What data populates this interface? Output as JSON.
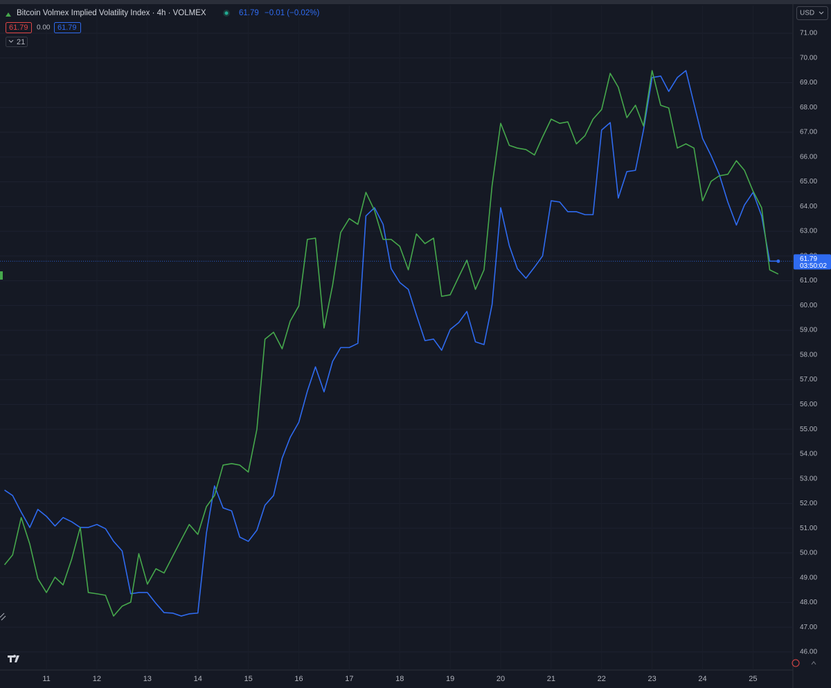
{
  "chart_data": {
    "type": "line",
    "title": "Bitcoin Volmex Implied Volatility Index · 4h · VOLMEX",
    "header": {
      "last": "61.79",
      "change": "−0.01 (−0.02%)",
      "ind_a": "61.79",
      "ind_b": "0.00",
      "ind_c": "61.79",
      "collapse": "21",
      "currency": "USD"
    },
    "countdown": "03:50:02",
    "grid": true,
    "xlim": [
      10.08,
      25.79
    ],
    "ylim": [
      45.27,
      72.12
    ],
    "xticks": [
      11,
      12,
      13,
      14,
      15,
      16,
      17,
      18,
      19,
      20,
      21,
      22,
      23,
      24,
      25
    ],
    "yticks": [
      {
        "value": 46,
        "label": "46.00"
      },
      {
        "value": 47,
        "label": "47.00"
      },
      {
        "value": 48,
        "label": "48.00"
      },
      {
        "value": 49,
        "label": "49.00"
      },
      {
        "value": 50,
        "label": "50.00"
      },
      {
        "value": 51,
        "label": "51.00"
      },
      {
        "value": 52,
        "label": "52.00"
      },
      {
        "value": 53,
        "label": "53.00"
      },
      {
        "value": 54,
        "label": "54.00"
      },
      {
        "value": 55,
        "label": "55.00"
      },
      {
        "value": 56,
        "label": "56.00"
      },
      {
        "value": 57,
        "label": "57.00"
      },
      {
        "value": 58,
        "label": "58.00"
      },
      {
        "value": 59,
        "label": "59.00"
      },
      {
        "value": 60,
        "label": "60.00"
      },
      {
        "value": 61,
        "label": "61.00"
      },
      {
        "value": 62,
        "label": "62.00"
      },
      {
        "value": 63,
        "label": "63.00"
      },
      {
        "value": 64,
        "label": "64.00"
      },
      {
        "value": 65,
        "label": "65.00"
      },
      {
        "value": 66,
        "label": "66.00"
      },
      {
        "value": 67,
        "label": "67.00"
      },
      {
        "value": 68,
        "label": "68.00"
      },
      {
        "value": 69,
        "label": "69.00"
      },
      {
        "value": 70,
        "label": "70.00"
      },
      {
        "value": 71,
        "label": "71.00"
      }
    ],
    "x": [
      10.17,
      10.33,
      10.5,
      10.67,
      10.83,
      11,
      11.17,
      11.33,
      11.5,
      11.67,
      11.83,
      12,
      12.17,
      12.33,
      12.5,
      12.67,
      12.83,
      13,
      13.17,
      13.33,
      13.5,
      13.67,
      13.83,
      14,
      14.17,
      14.33,
      14.5,
      14.67,
      14.83,
      15,
      15.17,
      15.33,
      15.5,
      15.67,
      15.83,
      16,
      16.17,
      16.33,
      16.5,
      16.67,
      16.83,
      17,
      17.17,
      17.33,
      17.5,
      17.67,
      17.83,
      18,
      18.17,
      18.33,
      18.5,
      18.67,
      18.83,
      19,
      19.17,
      19.33,
      19.5,
      19.67,
      19.83,
      20,
      20.17,
      20.33,
      20.5,
      20.67,
      20.83,
      21,
      21.17,
      21.33,
      21.5,
      21.67,
      21.83,
      22,
      22.17,
      22.33,
      22.5,
      22.67,
      22.83,
      23,
      23.17,
      23.33,
      23.5,
      23.67,
      23.83,
      24,
      24.17,
      24.33,
      24.5,
      24.67,
      24.83,
      25,
      25.17,
      25.33,
      25.5
    ],
    "series": [
      {
        "color": "#2f6bf0",
        "values": [
          52.54,
          52.32,
          51.65,
          51.03,
          51.76,
          51.48,
          51.09,
          51.43,
          51.26,
          51.03,
          51.03,
          51.15,
          50.98,
          50.47,
          50.08,
          48.35,
          48.4,
          48.4,
          47.96,
          47.59,
          47.57,
          47.45,
          47.54,
          47.57,
          50.81,
          52.71,
          51.82,
          51.7,
          50.64,
          50.47,
          50.92,
          51.93,
          52.32,
          53.83,
          54.67,
          55.28,
          56.54,
          57.52,
          56.51,
          57.74,
          58.3,
          58.3,
          58.47,
          63.62,
          63.95,
          63.28,
          61.49,
          60.93,
          60.65,
          59.62,
          58.58,
          58.64,
          58.19,
          59.03,
          59.31,
          59.76,
          58.53,
          58.42,
          60.04,
          63.95,
          62.42,
          61.49,
          61.1,
          61.55,
          62,
          64.23,
          64.18,
          63.79,
          63.79,
          63.67,
          63.67,
          67.09,
          67.39,
          64.34,
          65.41,
          65.46,
          67.09,
          69.21,
          69.27,
          68.65,
          69.21,
          69.49,
          68.15,
          66.75,
          66.05,
          65.3,
          64.18,
          63.25,
          64.06,
          64.57,
          63.62,
          61.79,
          61.79
        ]
      },
      {
        "color": "#46a84c",
        "values": [
          49.52,
          49.92,
          51.43,
          50.36,
          48.96,
          48.4,
          49.02,
          48.71,
          49.75,
          51.03,
          48.4,
          48.35,
          48.29,
          47.45,
          47.85,
          48.01,
          49.97,
          48.74,
          49.36,
          49.19,
          49.86,
          50.53,
          51.15,
          50.75,
          51.87,
          52.32,
          53.55,
          53.61,
          53.55,
          53.27,
          55,
          58.64,
          58.92,
          58.25,
          59.37,
          59.98,
          62.67,
          62.72,
          59.09,
          60.82,
          62.95,
          63.51,
          63.28,
          64.57,
          63.84,
          62.67,
          62.67,
          62.39,
          61.44,
          62.89,
          62.5,
          62.72,
          60.37,
          60.43,
          61.16,
          61.83,
          60.65,
          61.44,
          64.85,
          67.36,
          66.47,
          66.36,
          66.3,
          66.08,
          66.81,
          67.53,
          67.36,
          67.42,
          66.53,
          66.86,
          67.53,
          67.92,
          69.38,
          68.82,
          67.59,
          68.09,
          67.25,
          69.49,
          68.09,
          67.98,
          66.36,
          66.53,
          66.36,
          64.23,
          65.02,
          65.24,
          65.3,
          65.85,
          65.46,
          64.62,
          63.95,
          61.44,
          61.27
        ]
      }
    ]
  }
}
